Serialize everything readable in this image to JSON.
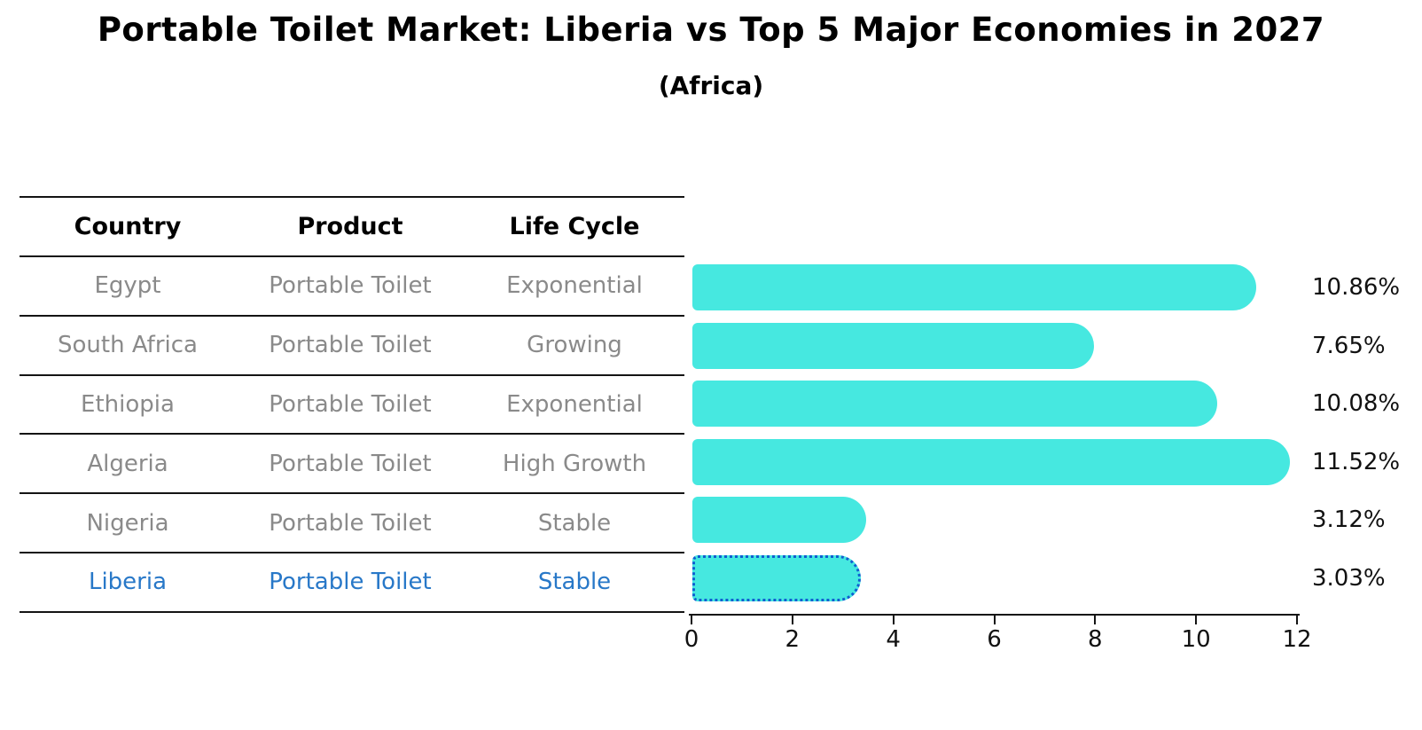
{
  "title": "Portable Toilet Market: Liberia vs Top 5 Major Economies in 2027",
  "subtitle": "(Africa)",
  "table": {
    "columns": [
      "Country",
      "Product",
      "Life Cycle"
    ],
    "rows": [
      {
        "country": "Egypt",
        "product": "Portable Toilet",
        "life_cycle": "Exponential",
        "highlight": false
      },
      {
        "country": "South Africa",
        "product": "Portable Toilet",
        "life_cycle": "Growing",
        "highlight": false
      },
      {
        "country": "Ethiopia",
        "product": "Portable Toilet",
        "life_cycle": "Exponential",
        "highlight": false
      },
      {
        "country": "Algeria",
        "product": "Portable Toilet",
        "life_cycle": "High Growth",
        "highlight": false
      },
      {
        "country": "Nigeria",
        "product": "Portable Toilet",
        "life_cycle": "Stable",
        "highlight": false
      },
      {
        "country": "Liberia",
        "product": "Portable Toilet",
        "life_cycle": "Stable",
        "highlight": true
      }
    ]
  },
  "chart_data": {
    "type": "bar",
    "orientation": "horizontal",
    "title": "Portable Toilet Market: Liberia vs Top 5 Major Economies in 2027",
    "subtitle": "(Africa)",
    "categories": [
      "Egypt",
      "South Africa",
      "Ethiopia",
      "Algeria",
      "Nigeria",
      "Liberia"
    ],
    "values": [
      10.86,
      7.65,
      10.08,
      11.52,
      3.12,
      3.03
    ],
    "value_labels": [
      "10.86%",
      "7.65%",
      "10.08%",
      "11.52%",
      "3.12%",
      "3.03%"
    ],
    "xlabel": "",
    "ylabel": "",
    "xlim": [
      0,
      12
    ],
    "x_ticks": [
      0,
      2,
      4,
      6,
      8,
      10,
      12
    ],
    "grid": false,
    "legend": false,
    "bar_color": "#46E8E0",
    "highlight_color": "#1E7FE8",
    "highlight_index": 5,
    "highlight_border_style": "dotted",
    "muted_text_color": "#8a8a8a",
    "highlight_text_color": "#2878C8"
  }
}
